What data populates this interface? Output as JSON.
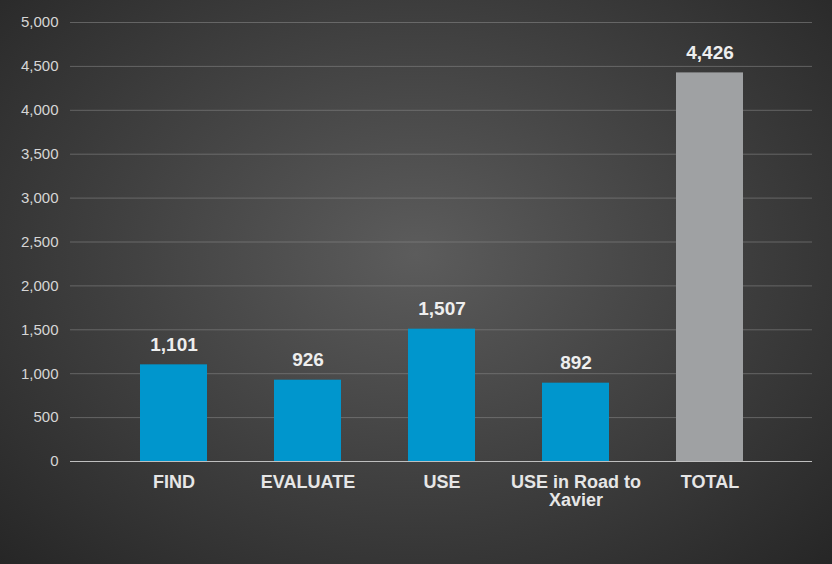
{
  "chart_data": {
    "type": "bar",
    "categories": [
      "FIND",
      "EVALUATE",
      "USE",
      "USE in Road to Xavier",
      "TOTAL"
    ],
    "values": [
      1101,
      926,
      1507,
      892,
      4426
    ],
    "value_labels": [
      "1,101",
      "926",
      "1,507",
      "892",
      "4,426"
    ],
    "colors": [
      "#0096cd",
      "#0096cd",
      "#0096cd",
      "#0096cd",
      "#9fa1a3"
    ],
    "ylim": [
      0,
      5000
    ],
    "yticks": [
      0,
      500,
      {
        "value": 1000,
        "label": "1,000"
      },
      {
        "value": 1500,
        "label": "1,500"
      },
      {
        "value": 2000,
        "label": "2,000"
      },
      {
        "value": 2500,
        "label": "2,500"
      },
      {
        "value": 3000,
        "label": "3,000"
      },
      {
        "value": 3500,
        "label": "3,500"
      },
      {
        "value": 4000,
        "label": "4,000"
      },
      {
        "value": 4500,
        "label": "4,500"
      },
      {
        "value": 5000,
        "label": "5,000"
      }
    ],
    "grid": true,
    "data_labels": true
  }
}
